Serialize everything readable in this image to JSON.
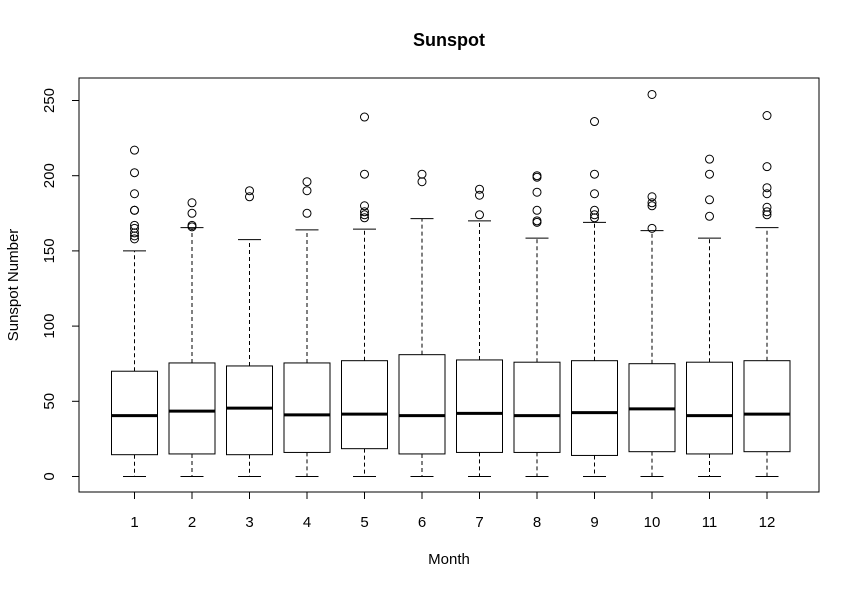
{
  "chart_data": {
    "type": "box",
    "title": "Sunspot",
    "xlabel": "Month",
    "ylabel": "Sunspot Number",
    "ylim": [
      -10,
      265
    ],
    "yticks": [
      0,
      50,
      100,
      150,
      200,
      250
    ],
    "categories": [
      "1",
      "2",
      "3",
      "4",
      "5",
      "6",
      "7",
      "8",
      "9",
      "10",
      "11",
      "12"
    ],
    "boxes": [
      {
        "min": 0,
        "q1": 14.5,
        "median": 40.5,
        "q3": 70,
        "max": 150,
        "outliers": [
          217,
          202,
          188,
          177,
          177,
          167,
          165,
          162,
          160,
          158
        ]
      },
      {
        "min": 0,
        "q1": 15,
        "median": 43.5,
        "q3": 75.5,
        "max": 165.5,
        "outliers": [
          182,
          175,
          167,
          166
        ]
      },
      {
        "min": 0,
        "q1": 14.5,
        "median": 45.5,
        "q3": 73.5,
        "max": 157.5,
        "outliers": [
          190,
          186
        ]
      },
      {
        "min": 0,
        "q1": 16,
        "median": 41,
        "q3": 75.5,
        "max": 164,
        "outliers": [
          196,
          190,
          175
        ]
      },
      {
        "min": 0,
        "q1": 18.5,
        "median": 41.5,
        "q3": 77,
        "max": 164.5,
        "outliers": [
          239,
          201,
          180,
          176,
          174,
          172
        ]
      },
      {
        "min": 0,
        "q1": 15,
        "median": 40.5,
        "q3": 81,
        "max": 171.5,
        "outliers": [
          201,
          196
        ]
      },
      {
        "min": 0,
        "q1": 16,
        "median": 42,
        "q3": 77.5,
        "max": 170,
        "outliers": [
          191,
          187,
          174
        ]
      },
      {
        "min": 0,
        "q1": 16,
        "median": 40.5,
        "q3": 76,
        "max": 158.5,
        "outliers": [
          200,
          199,
          189,
          177,
          170,
          169
        ]
      },
      {
        "min": 0,
        "q1": 14,
        "median": 42.5,
        "q3": 77,
        "max": 169,
        "outliers": [
          236,
          201,
          188,
          177,
          174,
          172
        ]
      },
      {
        "min": 0,
        "q1": 16.5,
        "median": 45,
        "q3": 75,
        "max": 163.5,
        "outliers": [
          254,
          186,
          182,
          180,
          165
        ]
      },
      {
        "min": 0,
        "q1": 15,
        "median": 40.5,
        "q3": 76,
        "max": 158.5,
        "outliers": [
          211,
          201,
          184,
          173
        ]
      },
      {
        "min": 0,
        "q1": 16.5,
        "median": 41.5,
        "q3": 77,
        "max": 165.5,
        "outliers": [
          240,
          206,
          192,
          188,
          179,
          176,
          174
        ]
      }
    ],
    "grid": false,
    "legend": "none"
  }
}
